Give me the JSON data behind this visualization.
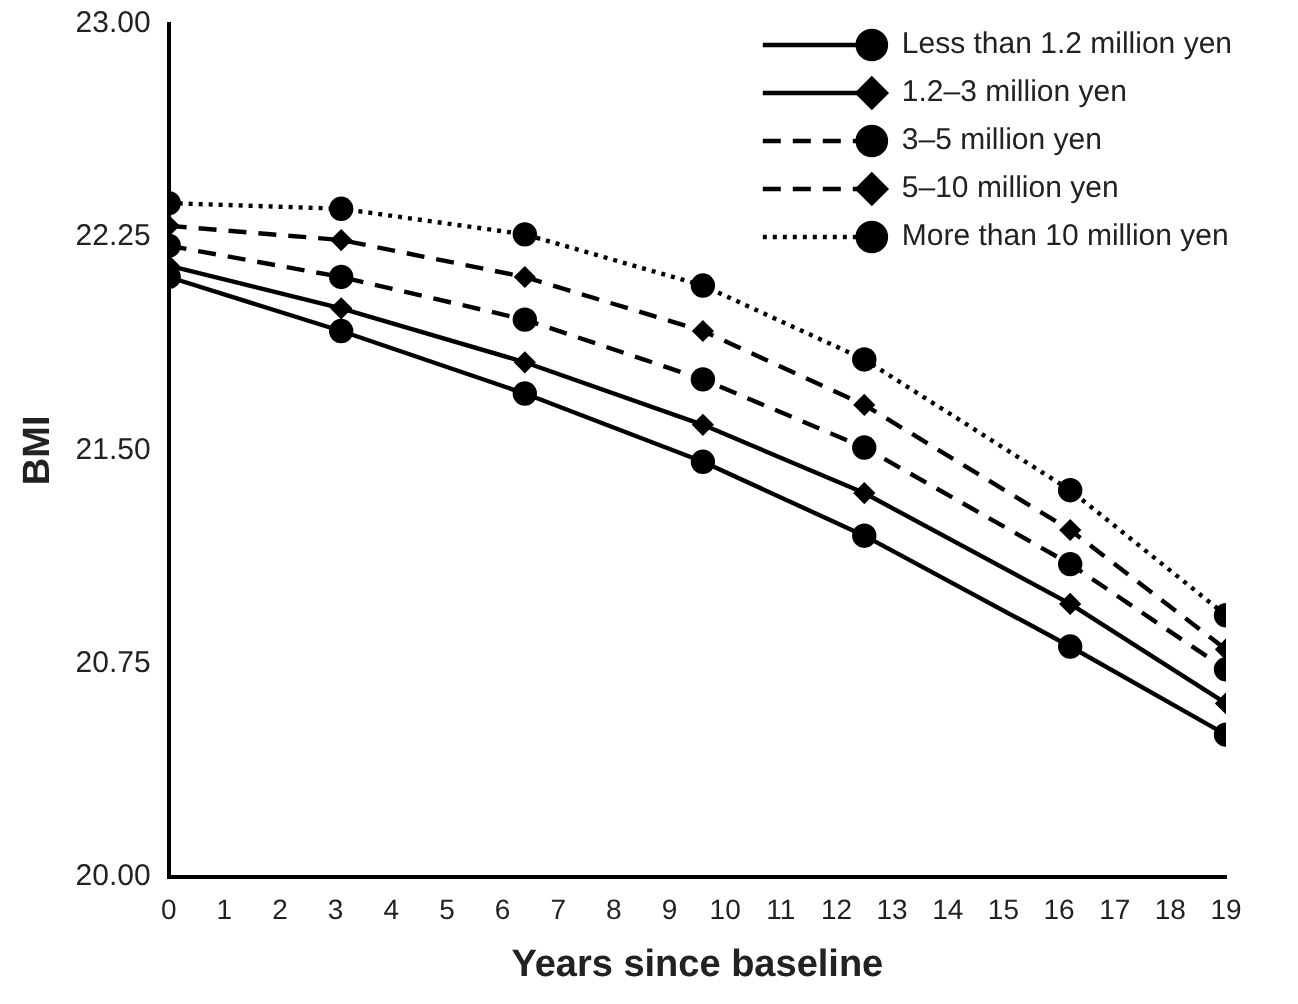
{
  "chart_data": {
    "type": "line",
    "xlabel": "Years since baseline",
    "ylabel": "BMI",
    "x": [
      0,
      3.1,
      6.4,
      9.6,
      12.5,
      16.2,
      19
    ],
    "xlim": [
      0,
      19
    ],
    "xticks": [
      0,
      1,
      2,
      3,
      4,
      5,
      6,
      7,
      8,
      9,
      10,
      11,
      12,
      13,
      14,
      15,
      16,
      17,
      18,
      19
    ],
    "ylim": [
      20,
      23
    ],
    "yticks": [
      {
        "value": 20,
        "label": "20.00"
      },
      {
        "value": 20.75,
        "label": "20.75"
      },
      {
        "value": 21.5,
        "label": "21.50"
      },
      {
        "value": 22.25,
        "label": "22.25"
      },
      {
        "value": 23,
        "label": "23.00"
      }
    ],
    "grid": false,
    "legend": "top right",
    "series": [
      {
        "name": "Less than 1.2 million yen",
        "color": "#000000",
        "marker": "circle",
        "line_style": "solid",
        "values": [
          22.11,
          21.92,
          21.7,
          21.46,
          21.2,
          20.81,
          20.5
        ]
      },
      {
        "name": "1.2–3 million yen",
        "color": "#000000",
        "marker": "diamond",
        "line_style": "solid",
        "values": [
          22.15,
          22.0,
          21.81,
          21.59,
          21.35,
          20.96,
          20.61
        ]
      },
      {
        "name": "3–5 million yen",
        "color": "#000000",
        "marker": "circle",
        "line_style": "dashed",
        "values": [
          22.22,
          22.11,
          21.96,
          21.75,
          21.51,
          21.1,
          20.73
        ]
      },
      {
        "name": "5–10 million yen",
        "color": "#000000",
        "marker": "diamond",
        "line_style": "dashed",
        "values": [
          22.29,
          22.24,
          22.11,
          21.92,
          21.66,
          21.22,
          20.8
        ]
      },
      {
        "name": "More than 10 million yen",
        "color": "#000000",
        "marker": "circle",
        "line_style": "dotted",
        "values": [
          22.37,
          22.35,
          22.26,
          22.08,
          21.82,
          21.36,
          20.92
        ]
      }
    ]
  }
}
